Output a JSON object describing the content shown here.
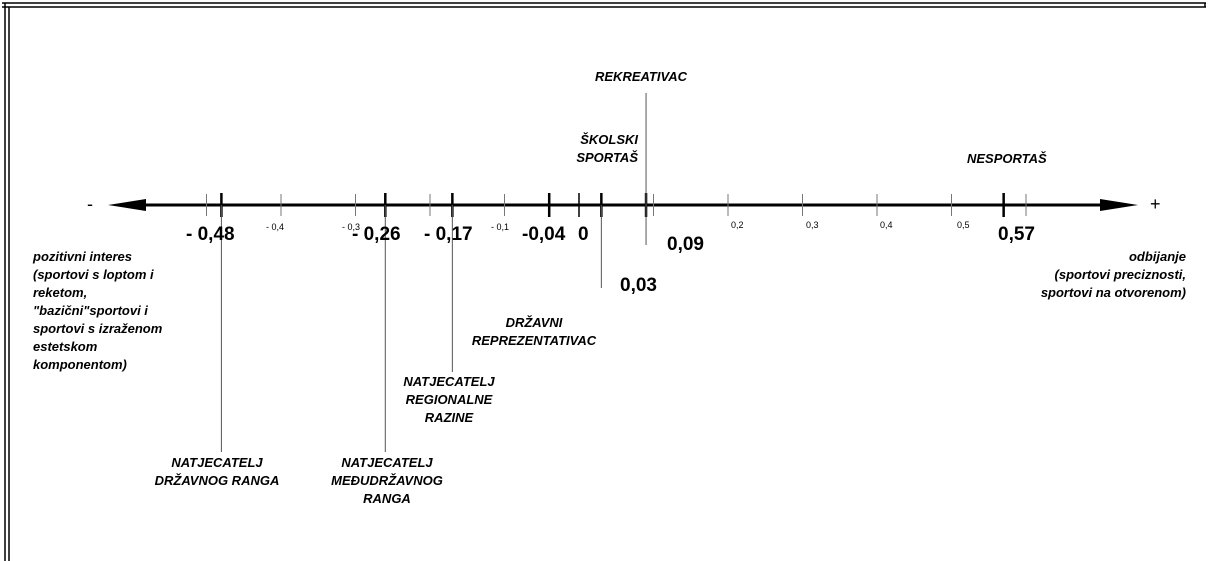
{
  "axis": {
    "minus_sign": "-",
    "plus_sign": "+",
    "minor_ticks": [
      {
        "value": -0.4,
        "label": "- 0,4"
      },
      {
        "value": -0.3,
        "label": "- 0,3"
      },
      {
        "value": -0.1,
        "label": "- 0,1"
      },
      {
        "value": 0.2,
        "label": "0,2"
      },
      {
        "value": 0.3,
        "label": "0,3"
      },
      {
        "value": 0.4,
        "label": "0,4"
      },
      {
        "value": 0.5,
        "label": "0,5"
      }
    ],
    "zero_label": "0"
  },
  "points": [
    {
      "value": -0.48,
      "label": "- 0,48",
      "category": "NATJECATELJ\nDRŽAVNOG RANGA"
    },
    {
      "value": -0.26,
      "label": "- 0,26",
      "category": "NATJECATELJ\nMEĐUDRŽAVNOG\nRANGA"
    },
    {
      "value": -0.17,
      "label": "- 0,17",
      "category": "NATJECATELJ\nREGIONALNE\nRAZINE"
    },
    {
      "value": -0.04,
      "label": "-0,04",
      "category": "DRŽAVNI\nREPREZENTATIVAC"
    },
    {
      "value": 0.03,
      "label": "0,03",
      "category": "ŠKOLSKI\nSPORTAŠ"
    },
    {
      "value": 0.09,
      "label": "0,09",
      "category": "REKREATIVAC"
    },
    {
      "value": 0.57,
      "label": "0,57",
      "category": "NESPORTAŠ"
    }
  ],
  "left_note": "pozitivni interes\n(sportovi s loptom i\nreketom,\n\"bazični\"sportovi i\nsportovi s izraženom\nestetskom\nkomponentom)",
  "right_note": "odbijanje\n(sportovi preciznosti,\nsportovi na otvorenom)"
}
